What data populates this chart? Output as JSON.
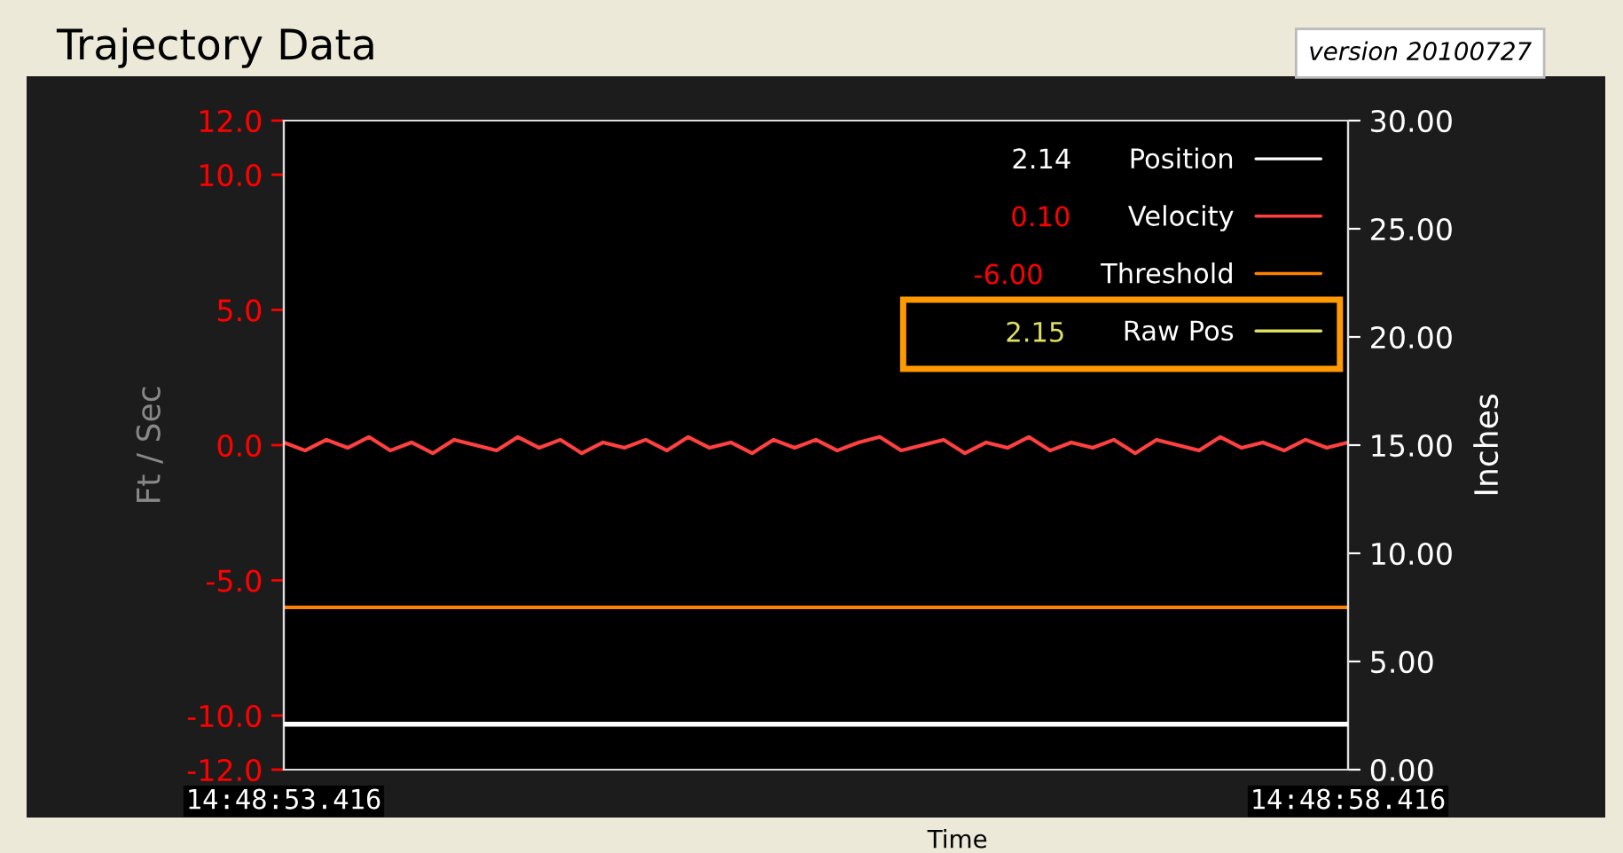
{
  "chart_data": {
    "type": "line",
    "title": "Trajectory Data",
    "xlabel": "Time",
    "ylabel": "Ft / Sec",
    "y2label": "Inches",
    "annotations": [
      "version 20100727",
      "2.14",
      "0.10",
      "-6.00",
      "2.15"
    ],
    "categories": [
      "14:48:53.416",
      null,
      null,
      null,
      null,
      null,
      null,
      null,
      null,
      null,
      null,
      null,
      null,
      null,
      null,
      null,
      null,
      null,
      null,
      null,
      null,
      null,
      null,
      null,
      null,
      null,
      null,
      null,
      null,
      null,
      null,
      null,
      null,
      null,
      null,
      null,
      null,
      null,
      null,
      null,
      null,
      null,
      null,
      null,
      null,
      null,
      null,
      null,
      null,
      null,
      "14:48:58.416"
    ],
    "ylim": [
      -12,
      12
    ],
    "yticks": [
      {
        "value": -12,
        "label": "-12.0"
      },
      {
        "value": -10,
        "label": "-10.0"
      },
      {
        "value": -5,
        "label": "-5.0"
      },
      {
        "value": 0,
        "label": "0.0"
      },
      {
        "value": 5,
        "label": "5.0"
      },
      {
        "value": 10,
        "label": "10.0"
      },
      {
        "value": 12,
        "label": "12.0"
      }
    ],
    "y2lim": [
      0,
      30
    ],
    "y2ticks": [
      {
        "value": 0,
        "label": "0.00"
      },
      {
        "value": 5,
        "label": "5.00"
      },
      {
        "value": 10,
        "label": "10.00"
      },
      {
        "value": 15,
        "label": "15.00"
      },
      {
        "value": 20,
        "label": "20.00"
      },
      {
        "value": 25,
        "label": "25.00"
      },
      {
        "value": 30,
        "label": "30.00"
      }
    ],
    "series": [
      {
        "name": "Position",
        "color": "#ffffff",
        "axis": "y2",
        "values": [
          2.1,
          2.1,
          2.1,
          2.1,
          2.1,
          2.1,
          2.1,
          2.1,
          2.1,
          2.1,
          2.1,
          2.1,
          2.1,
          2.1,
          2.1,
          2.1,
          2.1,
          2.1,
          2.1,
          2.1,
          2.1,
          2.1,
          2.1,
          2.1,
          2.1,
          2.1,
          2.1,
          2.1,
          2.1,
          2.1,
          2.1,
          2.1,
          2.1,
          2.1,
          2.1,
          2.1,
          2.1,
          2.1,
          2.1,
          2.1,
          2.1,
          2.1,
          2.1,
          2.1,
          2.1,
          2.1,
          2.1,
          2.1,
          2.1,
          2.1,
          2.1
        ]
      },
      {
        "name": "Velocity",
        "color": "#ff4040",
        "values": [
          0.1,
          -0.2,
          0.2,
          -0.1,
          0.3,
          -0.2,
          0.1,
          -0.3,
          0.2,
          0.0,
          -0.2,
          0.3,
          -0.1,
          0.2,
          -0.3,
          0.1,
          -0.1,
          0.2,
          -0.2,
          0.3,
          -0.1,
          0.1,
          -0.3,
          0.2,
          -0.1,
          0.2,
          -0.2,
          0.1,
          0.3,
          -0.2,
          0.0,
          0.2,
          -0.3,
          0.1,
          -0.1,
          0.3,
          -0.2,
          0.1,
          -0.1,
          0.2,
          -0.3,
          0.2,
          0.0,
          -0.2,
          0.3,
          -0.1,
          0.1,
          -0.2,
          0.2,
          -0.1,
          0.1
        ]
      },
      {
        "name": "Threshold",
        "color": "#ff8000",
        "values": [
          -6.0,
          -6.0,
          -6.0,
          -6.0,
          -6.0,
          -6.0,
          -6.0,
          -6.0,
          -6.0,
          -6.0,
          -6.0,
          -6.0,
          -6.0,
          -6.0,
          -6.0,
          -6.0,
          -6.0,
          -6.0,
          -6.0,
          -6.0,
          -6.0,
          -6.0,
          -6.0,
          -6.0,
          -6.0,
          -6.0,
          -6.0,
          -6.0,
          -6.0,
          -6.0,
          -6.0,
          -6.0,
          -6.0,
          -6.0,
          -6.0,
          -6.0,
          -6.0,
          -6.0,
          -6.0,
          -6.0,
          -6.0,
          -6.0,
          -6.0,
          -6.0,
          -6.0,
          -6.0,
          -6.0,
          -6.0,
          -6.0,
          -6.0,
          -6.0
        ]
      },
      {
        "name": "Raw Pos",
        "color": "#e0e060",
        "axis": "y2",
        "values": [
          null,
          null,
          null,
          null,
          null,
          null,
          null,
          null,
          null,
          null,
          null,
          null,
          null,
          null,
          null,
          null,
          null,
          null,
          null,
          null,
          null,
          null,
          null,
          null,
          null,
          null,
          null,
          null,
          null,
          null,
          null,
          null,
          null,
          null,
          null,
          null,
          null,
          null,
          null,
          null,
          null,
          null,
          null,
          null,
          null,
          null,
          null,
          null,
          null,
          null,
          null
        ]
      }
    ],
    "legend": "top right",
    "grid": false,
    "marker": "none",
    "line_style": "solid"
  }
}
